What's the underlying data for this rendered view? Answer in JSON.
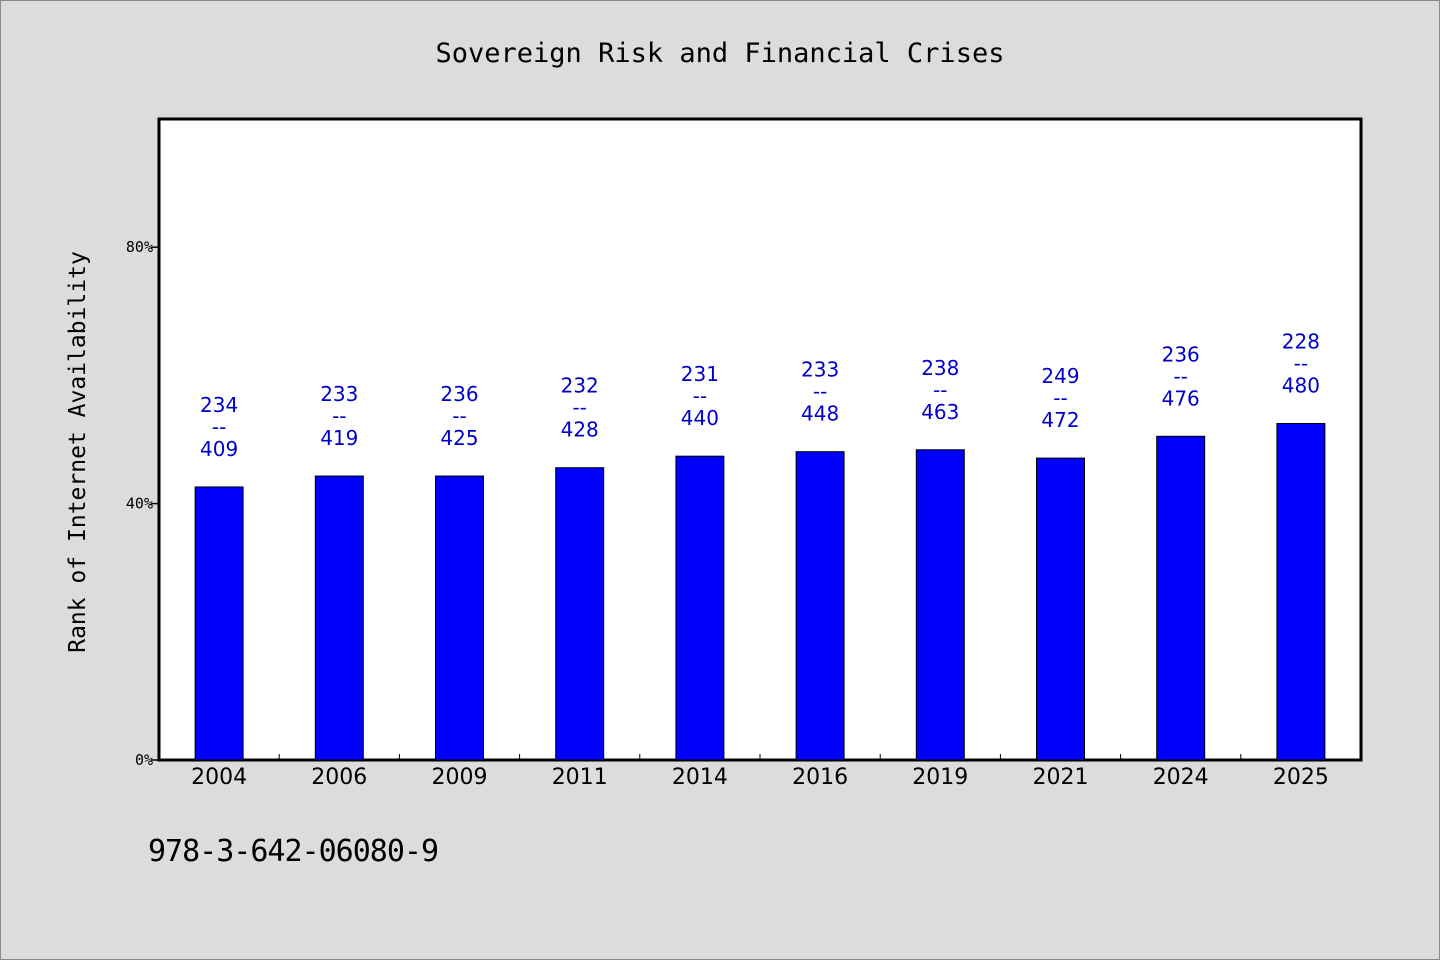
{
  "footer": {
    "code": "978-3-642-06080-9"
  },
  "colors": {
    "bar": "#0000ff",
    "label": "#0000cc",
    "background": "#dcdcdc",
    "plot": "#ffffff"
  },
  "chart_data": {
    "type": "bar",
    "title": "Sovereign Risk and Financial Crises",
    "xlabel": "",
    "ylabel": "Rank of Internet Availability",
    "ylim": [
      0,
      100
    ],
    "yticks": [
      0,
      40,
      80
    ],
    "ytick_labels": [
      "0%",
      "40%",
      "80%"
    ],
    "grid": false,
    "categories": [
      "2004",
      "2006",
      "2009",
      "2011",
      "2014",
      "2016",
      "2019",
      "2021",
      "2024",
      "2025"
    ],
    "values": [
      42.6,
      44.3,
      44.3,
      45.6,
      47.4,
      48.1,
      48.4,
      47.1,
      50.5,
      52.5
    ],
    "labels": [
      [
        "234",
        "--",
        "409"
      ],
      [
        "233",
        "--",
        "419"
      ],
      [
        "236",
        "--",
        "425"
      ],
      [
        "232",
        "--",
        "428"
      ],
      [
        "231",
        "--",
        "440"
      ],
      [
        "233",
        "--",
        "448"
      ],
      [
        "238",
        "--",
        "463"
      ],
      [
        "249",
        "--",
        "472"
      ],
      [
        "236",
        "--",
        "476"
      ],
      [
        "228",
        "--",
        "480"
      ]
    ]
  }
}
